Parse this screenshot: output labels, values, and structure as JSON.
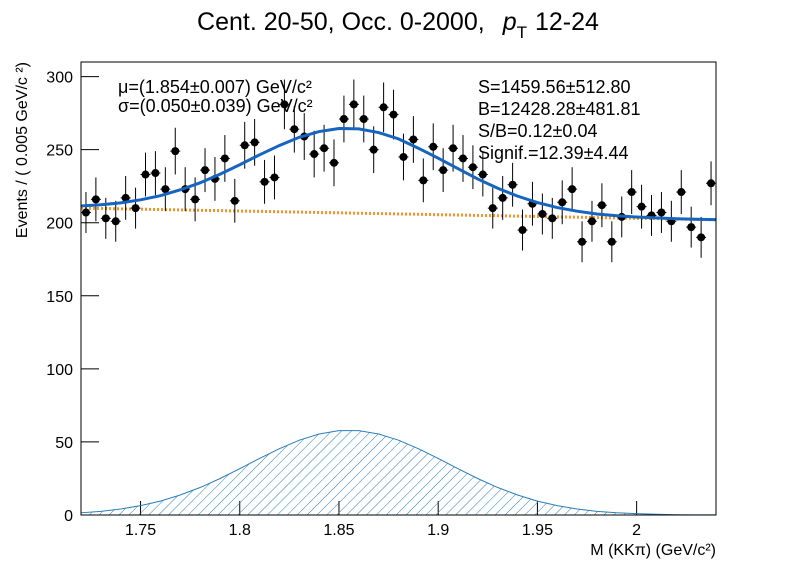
{
  "chart_data": {
    "type": "fit",
    "title": "Cent. 20-50, Occ. 0-2000,",
    "title_var": "p",
    "title_sub": "T",
    "title_rest": "12-24",
    "xlabel": "M (KKπ) (GeV/c²)",
    "ylabel": "Events / ( 0.005 GeV/c ²)",
    "annotations_left": [
      "μ=(1.854±0.007) GeV/c²",
      "σ=(0.050±0.039) GeV/c²"
    ],
    "annotations_right": [
      "S=1459.56±512.80",
      "B=12428.28±481.81",
      "S/B=0.12±0.04",
      "Signif.=12.39±4.44"
    ],
    "xlim": [
      1.72,
      2.04
    ],
    "ylim": [
      0,
      310
    ],
    "xticks": [
      1.75,
      1.8,
      1.85,
      1.9,
      1.95,
      2
    ],
    "yticks": [
      0,
      50,
      100,
      150,
      200,
      250,
      300
    ],
    "data": {
      "color": "#000000",
      "x": [
        1.7225,
        1.7275,
        1.7325,
        1.7375,
        1.7425,
        1.7475,
        1.7525,
        1.7575,
        1.7625,
        1.7675,
        1.7725,
        1.7775,
        1.7825,
        1.7875,
        1.7925,
        1.7975,
        1.8025,
        1.8075,
        1.8125,
        1.8175,
        1.8225,
        1.8275,
        1.8325,
        1.8375,
        1.8425,
        1.8475,
        1.8525,
        1.8575,
        1.8625,
        1.8675,
        1.8725,
        1.8775,
        1.8825,
        1.8875,
        1.8925,
        1.8975,
        1.9025,
        1.9075,
        1.9125,
        1.9175,
        1.9225,
        1.9275,
        1.9325,
        1.9375,
        1.9425,
        1.9475,
        1.9525,
        1.9575,
        1.9625,
        1.9675,
        1.9725,
        1.9775,
        1.9825,
        1.9875,
        1.9925,
        1.9975,
        2.0025,
        2.0075,
        2.0125,
        2.0175,
        2.0225,
        2.0275,
        2.0325,
        2.0375
      ],
      "values": [
        207,
        216,
        203,
        201,
        217,
        210,
        233,
        234,
        223,
        249,
        223,
        216,
        236,
        230,
        244,
        215,
        253,
        255,
        228,
        231,
        281,
        264,
        259,
        247,
        251,
        241,
        271,
        281,
        271,
        250,
        279,
        274,
        245,
        257,
        229,
        252,
        236,
        251,
        244,
        238,
        233,
        210,
        217,
        226,
        195,
        213,
        206,
        203,
        214,
        223,
        187,
        201,
        212,
        187,
        204,
        221,
        211,
        205,
        207,
        201,
        221,
        197,
        190,
        227
      ],
      "errors": [
        14,
        15,
        14,
        14,
        15,
        14,
        15,
        15,
        15,
        16,
        15,
        15,
        15,
        15,
        16,
        15,
        16,
        16,
        15,
        15,
        17,
        16,
        16,
        16,
        16,
        16,
        16,
        17,
        16,
        16,
        17,
        17,
        16,
        16,
        15,
        16,
        15,
        16,
        16,
        15,
        15,
        14,
        15,
        15,
        14,
        15,
        14,
        14,
        15,
        15,
        14,
        14,
        15,
        14,
        14,
        15,
        15,
        14,
        14,
        14,
        15,
        14,
        14,
        15
      ]
    },
    "curve_x": [
      1.72,
      1.73,
      1.74,
      1.75,
      1.76,
      1.77,
      1.78,
      1.79,
      1.8,
      1.81,
      1.82,
      1.83,
      1.84,
      1.85,
      1.86,
      1.87,
      1.88,
      1.89,
      1.9,
      1.91,
      1.92,
      1.93,
      1.94,
      1.95,
      1.96,
      1.97,
      1.98,
      1.99,
      2.0,
      2.01,
      2.02,
      2.03,
      2.04
    ],
    "total": {
      "color": "#1464c0",
      "values": [
        211.5,
        212.3,
        213.6,
        215.7,
        218.5,
        222.5,
        227.3,
        233.2,
        239.7,
        246.5,
        252.9,
        258.5,
        262.4,
        264.5,
        264.2,
        261.7,
        257.4,
        251.0,
        244.2,
        237.0,
        229.9,
        223.6,
        218.2,
        213.8,
        210.4,
        207.9,
        206.0,
        204.8,
        203.9,
        203.3,
        202.7,
        202.4,
        202.1
      ]
    },
    "background": {
      "color": "#f0922c",
      "values": [
        210,
        209.8,
        209.5,
        209.3,
        209,
        208.8,
        208.5,
        208.3,
        208,
        207.8,
        207.5,
        207.3,
        207,
        206.8,
        206.5,
        206.3,
        206,
        205.8,
        205.5,
        205.3,
        205,
        204.8,
        204.5,
        204.3,
        204,
        203.8,
        203.5,
        203.3,
        203,
        202.8,
        202.5,
        202.3,
        202
      ]
    },
    "signal": {
      "color": "#2a7db8",
      "values": [
        1.5,
        2.5,
        4.1,
        6.4,
        9.5,
        13.7,
        18.8,
        24.9,
        31.7,
        38.7,
        45.4,
        51.2,
        55.4,
        57.7,
        57.7,
        55.4,
        51.2,
        45.4,
        38.7,
        31.7,
        24.9,
        18.8,
        13.7,
        9.5,
        6.4,
        4.1,
        2.5,
        1.5,
        0.9,
        0.5,
        0.2,
        0.1,
        0.1
      ]
    }
  }
}
